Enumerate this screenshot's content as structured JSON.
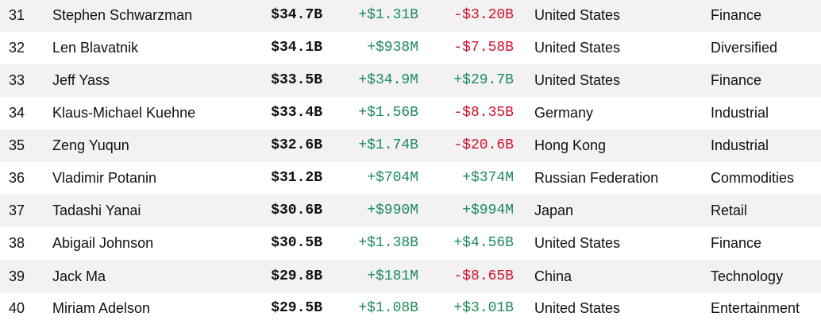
{
  "colors": {
    "positive": "#1d8a5a",
    "negative": "#d3102e",
    "row_shade": "#f2f2f2"
  },
  "rows": [
    {
      "rank": "31",
      "name": "Stephen Schwarzman",
      "net_worth": "$34.7B",
      "last_change": "+$1.31B",
      "ytd_change": "-$3.20B",
      "country": "United States",
      "industry": "Finance"
    },
    {
      "rank": "32",
      "name": "Len Blavatnik",
      "net_worth": "$34.1B",
      "last_change": "+$938M",
      "ytd_change": "-$7.58B",
      "country": "United States",
      "industry": "Diversified"
    },
    {
      "rank": "33",
      "name": "Jeff Yass",
      "net_worth": "$33.5B",
      "last_change": "+$34.9M",
      "ytd_change": "+$29.7B",
      "country": "United States",
      "industry": "Finance"
    },
    {
      "rank": "34",
      "name": "Klaus-Michael Kuehne",
      "net_worth": "$33.4B",
      "last_change": "+$1.56B",
      "ytd_change": "-$8.35B",
      "country": "Germany",
      "industry": "Industrial"
    },
    {
      "rank": "35",
      "name": "Zeng Yuqun",
      "net_worth": "$32.6B",
      "last_change": "+$1.74B",
      "ytd_change": "-$20.6B",
      "country": "Hong Kong",
      "industry": "Industrial"
    },
    {
      "rank": "36",
      "name": "Vladimir Potanin",
      "net_worth": "$31.2B",
      "last_change": "+$704M",
      "ytd_change": "+$374M",
      "country": "Russian Federation",
      "industry": "Commodities"
    },
    {
      "rank": "37",
      "name": "Tadashi Yanai",
      "net_worth": "$30.6B",
      "last_change": "+$990M",
      "ytd_change": "+$994M",
      "country": "Japan",
      "industry": "Retail"
    },
    {
      "rank": "38",
      "name": "Abigail Johnson",
      "net_worth": "$30.5B",
      "last_change": "+$1.38B",
      "ytd_change": "+$4.56B",
      "country": "United States",
      "industry": "Finance"
    },
    {
      "rank": "39",
      "name": "Jack Ma",
      "net_worth": "$29.8B",
      "last_change": "+$181M",
      "ytd_change": "-$8.65B",
      "country": "China",
      "industry": "Technology"
    },
    {
      "rank": "40",
      "name": "Miriam Adelson",
      "net_worth": "$29.5B",
      "last_change": "+$1.08B",
      "ytd_change": "+$3.01B",
      "country": "United States",
      "industry": "Entertainment"
    }
  ]
}
